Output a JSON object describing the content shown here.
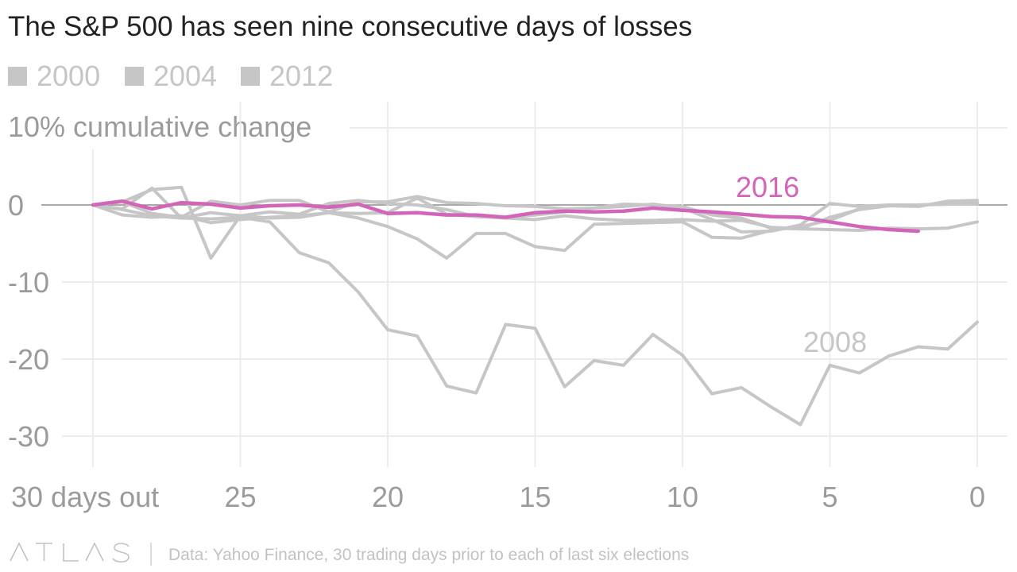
{
  "title": "The S&P 500 has seen nine consecutive days of losses",
  "legend": [
    {
      "label": "2000",
      "color": "#c6c6c6"
    },
    {
      "label": "2004",
      "color": "#c6c6c6"
    },
    {
      "label": "2012",
      "color": "#c6c6c6"
    }
  ],
  "footer": {
    "brand": "ATLAS",
    "source": "Data: Yahoo Finance, 30 trading days prior to each of last six elections"
  },
  "chart_data": {
    "type": "line",
    "title": "The S&P 500 has seen nine consecutive days of losses",
    "ylabel": "10% cumulative change",
    "xlabel": "",
    "x_reversed": true,
    "xlim": [
      30,
      0
    ],
    "ylim": [
      -33,
      13
    ],
    "x_ticks": [
      30,
      25,
      20,
      15,
      10,
      5,
      0
    ],
    "x_tick_labels": [
      "30 days out",
      "25",
      "20",
      "15",
      "10",
      "5",
      "0"
    ],
    "y_ticks": [
      0,
      -10,
      -20,
      -30
    ],
    "y_tick_labels": [
      "0",
      "-10",
      "-20",
      "-30"
    ],
    "grid": true,
    "legend_position": "top-left",
    "highlight_color": "#d365b8",
    "muted_color": "#c6c6c6",
    "x": [
      30,
      29,
      28,
      27,
      26,
      25,
      24,
      23,
      22,
      21,
      20,
      19,
      18,
      17,
      16,
      15,
      14,
      13,
      12,
      11,
      10,
      9,
      8,
      7,
      6,
      5,
      4,
      3,
      2,
      1,
      0
    ],
    "series": [
      {
        "name": "2016",
        "label": "2016",
        "highlight": true,
        "values": [
          0,
          0.5,
          -0.5,
          0.3,
          0.1,
          -0.4,
          -0.1,
          0.0,
          -0.3,
          0.1,
          -1.1,
          -1.0,
          -1.3,
          -1.3,
          -1.6,
          -1.0,
          -0.8,
          -0.9,
          -0.8,
          -0.4,
          -0.7,
          -0.9,
          -1.2,
          -1.5,
          -1.6,
          -2.2,
          -2.8,
          -3.2,
          -3.4,
          null,
          null
        ]
      },
      {
        "name": "2008",
        "label": "2008",
        "values": [
          0,
          -0.6,
          -1.4,
          -1.7,
          -1.8,
          -1.6,
          -2.2,
          -6.2,
          -7.5,
          -11.3,
          -16.2,
          -17.0,
          -23.5,
          -24.4,
          -15.5,
          -16.0,
          -23.6,
          -20.2,
          -20.8,
          -16.8,
          -19.5,
          -24.5,
          -23.7,
          -26.2,
          -28.5,
          -20.8,
          -21.8,
          -19.6,
          -18.4,
          -18.7,
          -15.2
        ]
      },
      {
        "values": [
          0,
          0.4,
          2.0,
          2.3,
          -6.9,
          -1.4,
          -1.7,
          -1.6,
          -1.0,
          -1.1,
          -1.0,
          0.9,
          -1.2,
          -1.5,
          -1.7,
          -1.9,
          -1.4,
          -1.8,
          -2.0,
          -2.0,
          -1.9,
          -2.1,
          -2.0,
          -2.9,
          -3.1,
          -3.2,
          -3.3,
          -3.0,
          -3.1,
          -3.0,
          -2.2
        ]
      },
      {
        "values": [
          0,
          -1.3,
          -1.6,
          -1.4,
          -2.3,
          -1.9,
          -1.6,
          -1.4,
          -1.0,
          -1.7,
          -2.8,
          -4.4,
          -6.9,
          -3.7,
          -3.7,
          -5.4,
          -5.9,
          -2.5,
          -2.4,
          -2.3,
          -2.2,
          -4.2,
          -4.3,
          -3.3,
          -2.8,
          -2.0,
          -0.5,
          -0.1,
          0.0,
          0.1,
          0.3
        ]
      },
      {
        "values": [
          0,
          0.4,
          -1.1,
          -1.6,
          0.5,
          0.0,
          0.6,
          0.6,
          -0.9,
          0.4,
          0.4,
          1.1,
          0.3,
          0.2,
          -0.1,
          -0.2,
          -0.5,
          -0.4,
          -0.2,
          0.1,
          -0.4,
          -1.9,
          -3.5,
          -3.4,
          -2.6,
          0.2,
          -0.2,
          0.0,
          0.0,
          0.1,
          0.1
        ]
      },
      {
        "values": [
          0,
          -0.5,
          2.2,
          -1.7,
          -1.0,
          -1.4,
          -0.9,
          -1.2,
          0.2,
          0.6,
          0.2,
          0.0,
          -0.6,
          -1.5,
          -1.6,
          -1.3,
          -0.9,
          -0.4,
          0.1,
          0.0,
          -0.2,
          -1.3,
          -1.7,
          -3.0,
          -3.1,
          -1.6,
          -0.6,
          -0.1,
          -0.2,
          0.5,
          0.6
        ]
      }
    ]
  }
}
